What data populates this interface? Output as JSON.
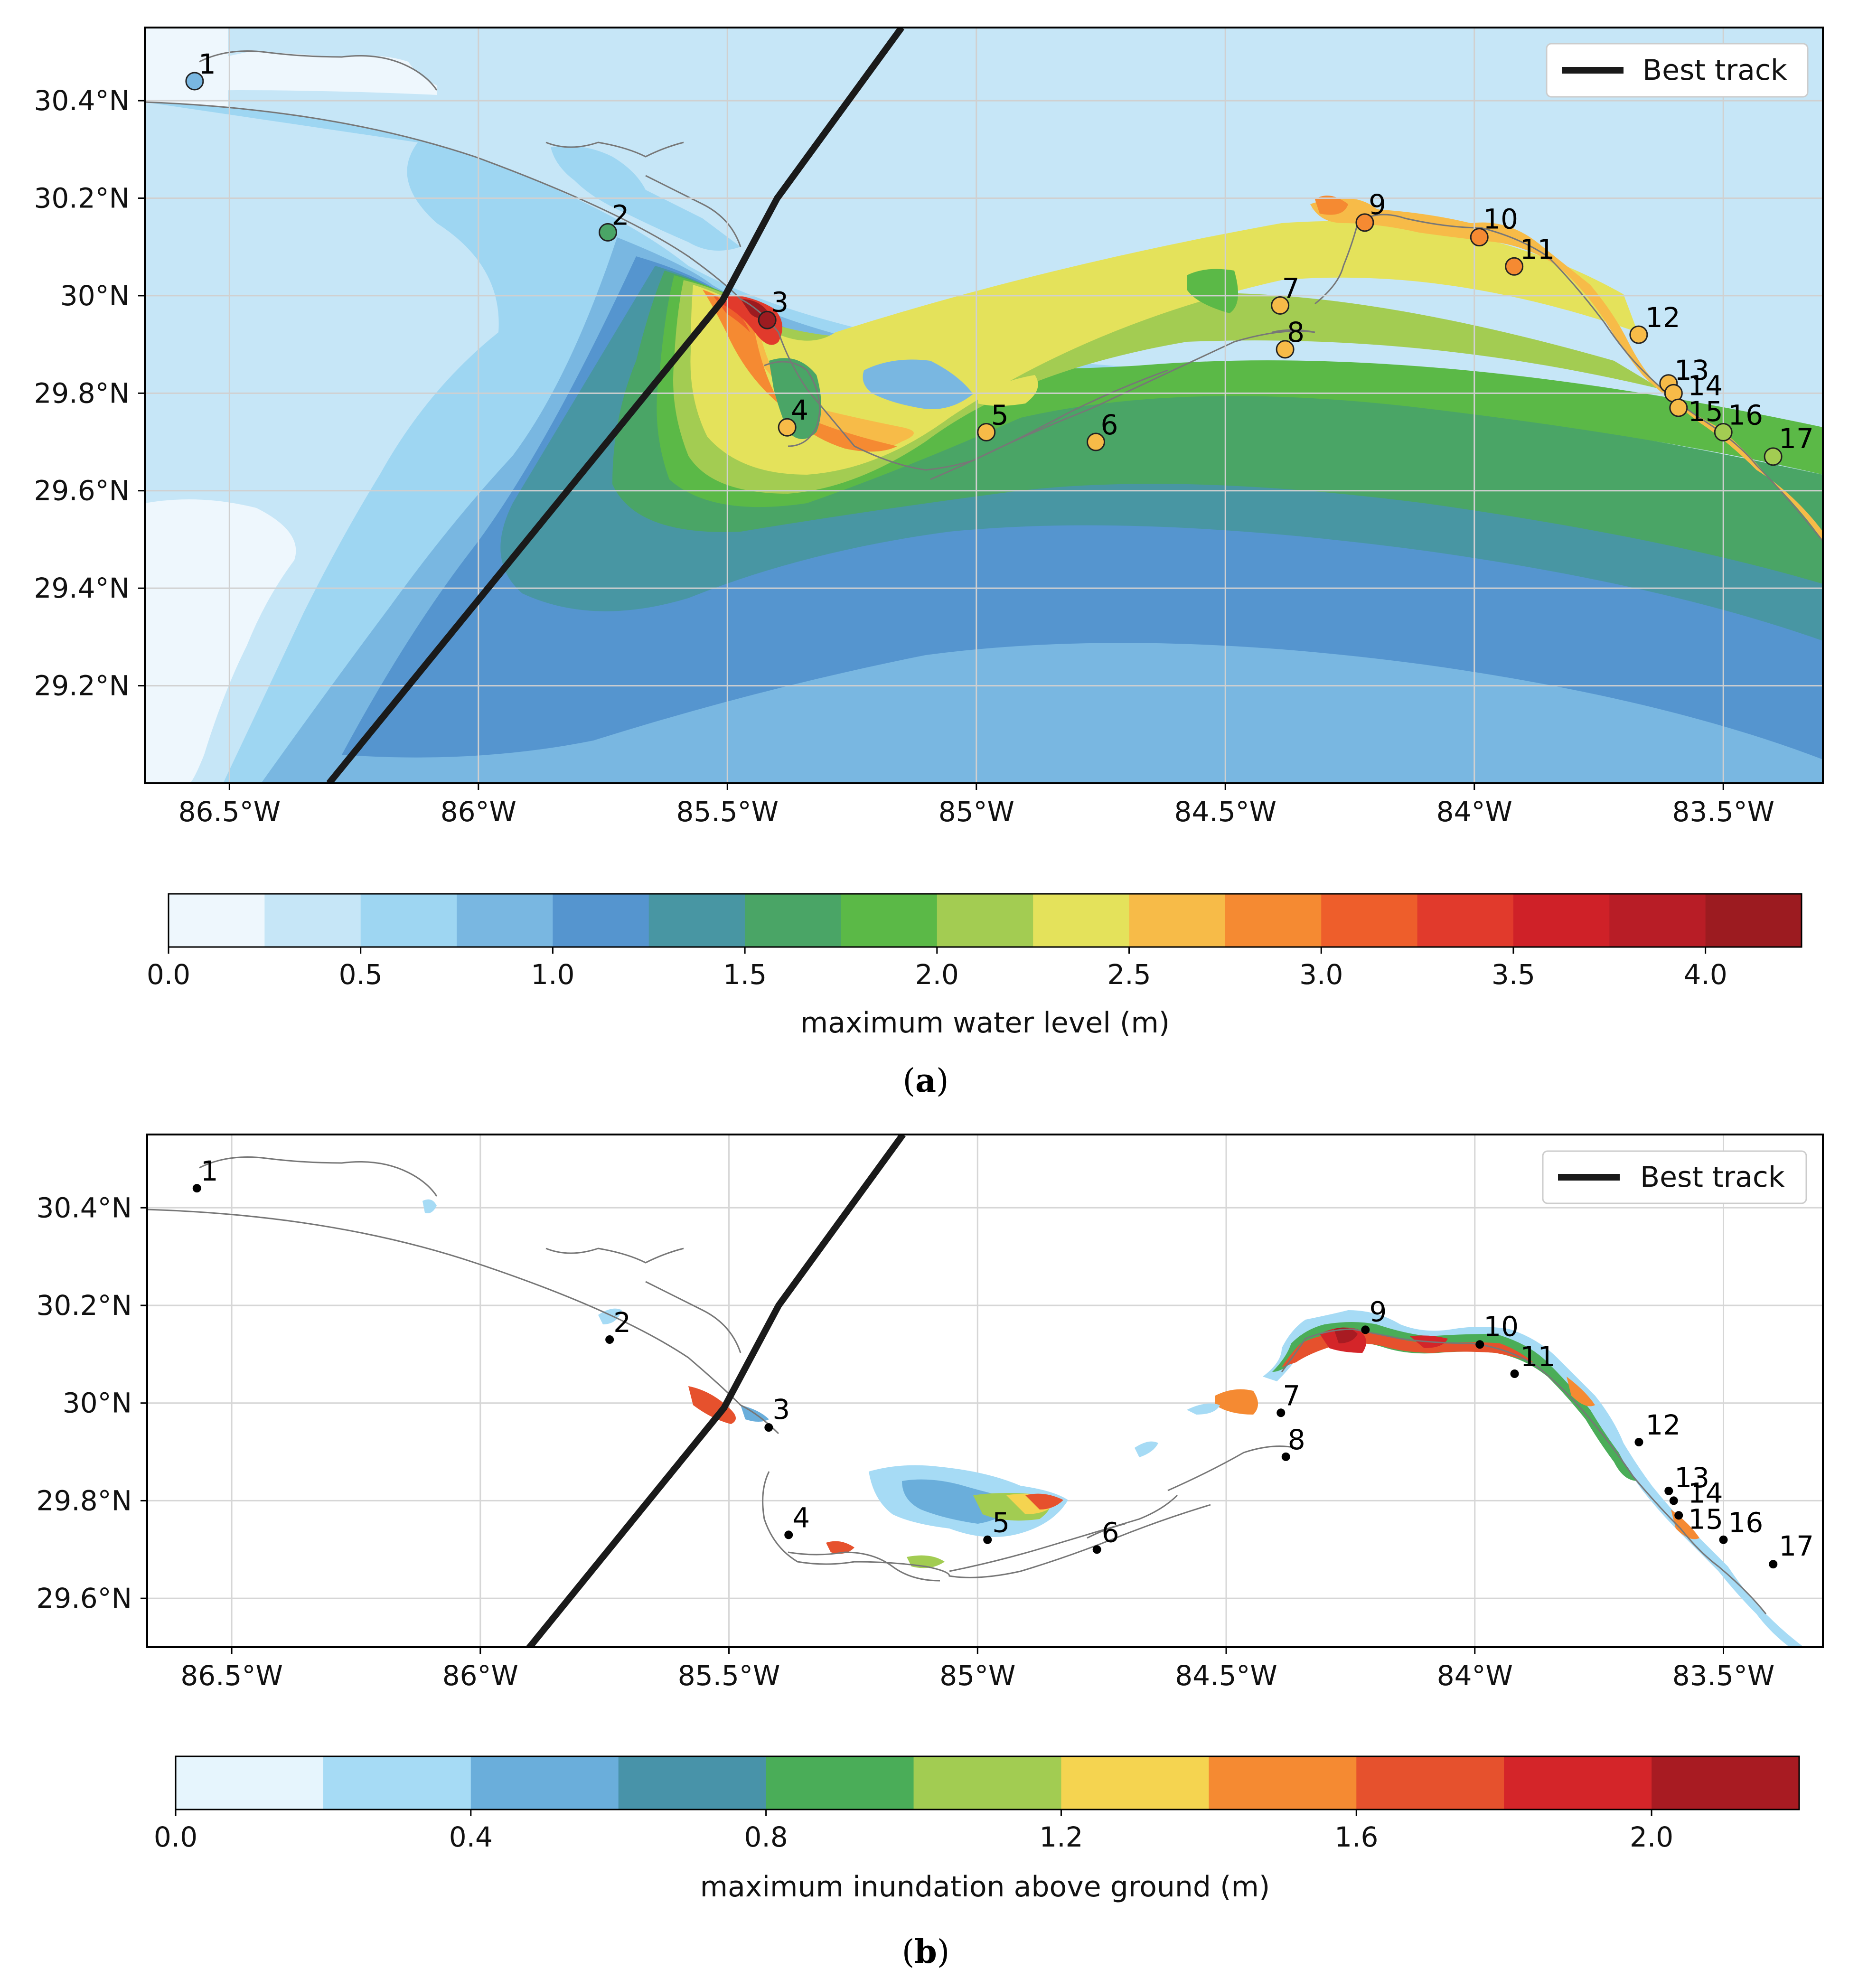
{
  "panel_a": {
    "sublabel_open": "(",
    "sublabel_letter": "a",
    "sublabel_close": ")",
    "legend_label": "Best track",
    "colorbar": {
      "label": "maximum water level (m)",
      "tick_labels": [
        "0.0",
        "0.5",
        "1.0",
        "1.5",
        "2.0",
        "2.5",
        "3.0",
        "3.5",
        "4.0"
      ],
      "tick_values": [
        0.0,
        0.5,
        1.0,
        1.5,
        2.0,
        2.5,
        3.0,
        3.5,
        4.0
      ],
      "min": 0.0,
      "max": 4.25,
      "step": 0.25,
      "colors": [
        "#eef7fd",
        "#c6e6f7",
        "#9ed6f2",
        "#79b7e1",
        "#5595cf",
        "#4896a3",
        "#4aa566",
        "#5bb947",
        "#a3cc52",
        "#e4e25b",
        "#f7bb48",
        "#f58a32",
        "#ee5e2b",
        "#e13a2c",
        "#cf2128",
        "#b81d26",
        "#9c1b20"
      ]
    },
    "x_tick_labels": [
      "86.5°W",
      "86°W",
      "85.5°W",
      "85°W",
      "84.5°W",
      "84°W",
      "83.5°W"
    ],
    "x_tick_values": [
      -86.5,
      -86.0,
      -85.5,
      -85.0,
      -84.5,
      -84.0,
      -83.5
    ],
    "y_tick_labels": [
      "29.2°N",
      "29.4°N",
      "29.6°N",
      "29.8°N",
      "30°N",
      "30.2°N",
      "30.4°N"
    ],
    "y_tick_values": [
      29.2,
      29.4,
      29.6,
      29.8,
      30.0,
      30.2,
      30.4
    ],
    "extent": {
      "lon_min": -86.67,
      "lon_max": -83.3,
      "lat_min": 29.0,
      "lat_max": 30.55
    }
  },
  "panel_b": {
    "sublabel_open": "(",
    "sublabel_letter": "b",
    "sublabel_close": ")",
    "legend_label": "Best track",
    "colorbar": {
      "label": "maximum inundation above ground (m)",
      "tick_labels": [
        "0.0",
        "0.4",
        "0.8",
        "1.2",
        "1.6",
        "2.0"
      ],
      "tick_values": [
        0.0,
        0.4,
        0.8,
        1.2,
        1.6,
        2.0
      ],
      "min": 0.0,
      "max": 2.2,
      "step": 0.2,
      "colors": [
        "#e6f5fd",
        "#a6dbf5",
        "#6aaedb",
        "#4893a9",
        "#4aad58",
        "#a2cc52",
        "#f5d450",
        "#f58a32",
        "#e6512d",
        "#d42529",
        "#a81b22"
      ]
    },
    "x_tick_labels": [
      "86.5°W",
      "86°W",
      "85.5°W",
      "85°W",
      "84.5°W",
      "84°W",
      "83.5°W"
    ],
    "x_tick_values": [
      -86.5,
      -86.0,
      -85.5,
      -85.0,
      -84.5,
      -84.0,
      -83.5
    ],
    "y_tick_labels": [
      "29.6°N",
      "29.8°N",
      "30°N",
      "30.2°N",
      "30.4°N"
    ],
    "y_tick_values": [
      29.6,
      29.8,
      30.0,
      30.2,
      30.4
    ],
    "extent": {
      "lon_min": -86.67,
      "lon_max": -83.3,
      "lat_min": 29.5,
      "lat_max": 30.55
    }
  },
  "best_track": [
    {
      "lon": -86.3,
      "lat": 29.0
    },
    {
      "lon": -85.51,
      "lat": 29.99
    },
    {
      "lon": -85.4,
      "lat": 30.2
    },
    {
      "lon": -85.15,
      "lat": 30.55
    }
  ],
  "stations": [
    {
      "id": "1",
      "lon": -86.57,
      "lat": 30.44,
      "level_a": 0.9
    },
    {
      "id": "2",
      "lon": -85.74,
      "lat": 30.13,
      "level_a": 1.6
    },
    {
      "id": "3",
      "lon": -85.42,
      "lat": 29.95,
      "level_a": 4.2
    },
    {
      "id": "4",
      "lon": -85.38,
      "lat": 29.73,
      "level_a": 2.6
    },
    {
      "id": "5",
      "lon": -84.98,
      "lat": 29.72,
      "level_a": 2.6
    },
    {
      "id": "6",
      "lon": -84.76,
      "lat": 29.7,
      "level_a": 2.6
    },
    {
      "id": "7",
      "lon": -84.39,
      "lat": 29.98,
      "level_a": 2.6
    },
    {
      "id": "8",
      "lon": -84.38,
      "lat": 29.89,
      "level_a": 2.6
    },
    {
      "id": "9",
      "lon": -84.22,
      "lat": 30.15,
      "level_a": 2.9
    },
    {
      "id": "10",
      "lon": -83.99,
      "lat": 30.12,
      "level_a": 2.9
    },
    {
      "id": "11",
      "lon": -83.92,
      "lat": 30.06,
      "level_a": 2.9
    },
    {
      "id": "12",
      "lon": -83.67,
      "lat": 29.92,
      "level_a": 2.6
    },
    {
      "id": "13",
      "lon": -83.61,
      "lat": 29.82,
      "level_a": 2.6
    },
    {
      "id": "14",
      "lon": -83.6,
      "lat": 29.8,
      "level_a": 2.6
    },
    {
      "id": "15",
      "lon": -83.59,
      "lat": 29.77,
      "level_a": 2.6
    },
    {
      "id": "16",
      "lon": -83.5,
      "lat": 29.72,
      "level_a": 2.2
    },
    {
      "id": "17",
      "lon": -83.4,
      "lat": 29.67,
      "level_a": 2.2
    }
  ]
}
